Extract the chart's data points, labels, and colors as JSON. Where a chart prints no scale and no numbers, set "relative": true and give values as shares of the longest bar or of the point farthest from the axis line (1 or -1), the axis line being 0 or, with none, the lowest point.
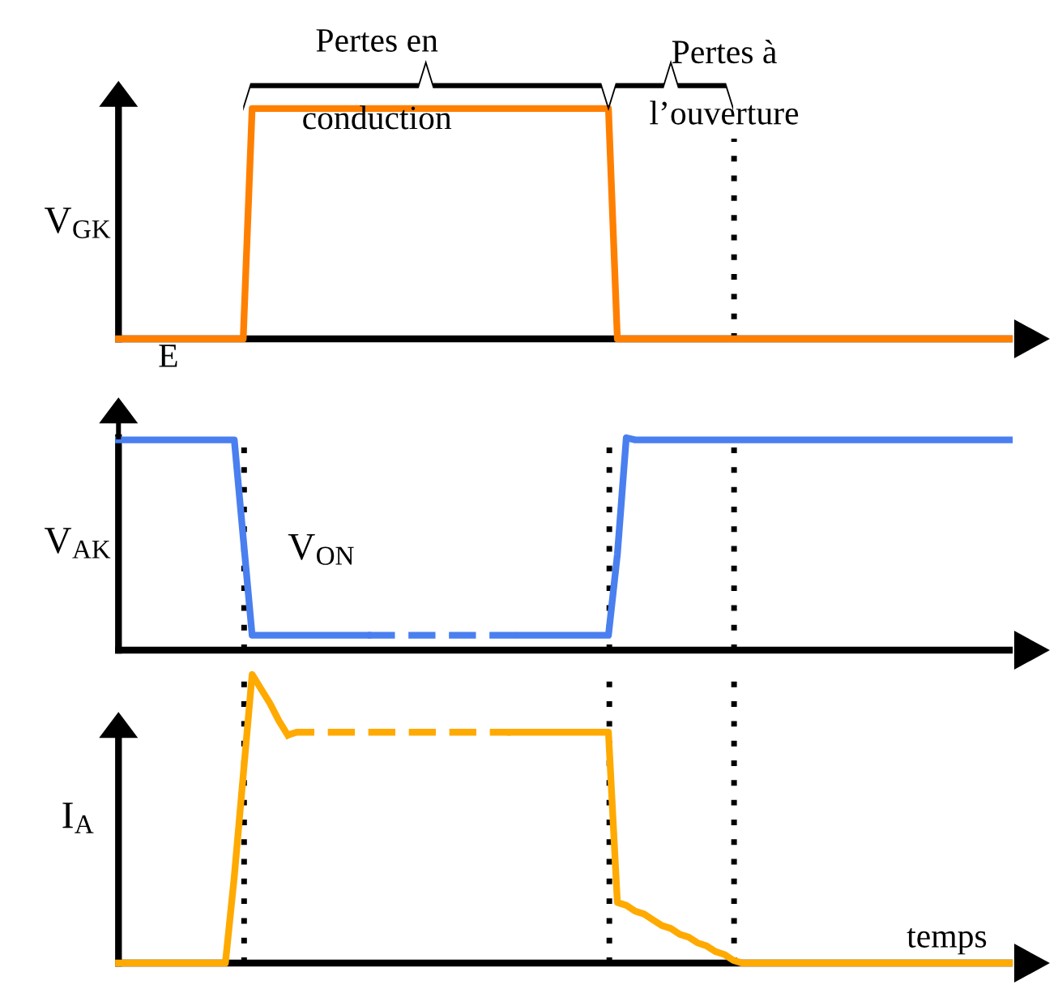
{
  "chart_data": [
    {
      "type": "line",
      "relative": true,
      "ylabel": "V$_{GK}$",
      "categories": [
        null,
        null,
        null,
        null,
        null,
        null,
        null,
        null,
        null,
        null,
        null,
        null,
        null,
        null,
        null,
        null,
        null,
        null,
        null,
        null,
        null,
        null,
        null,
        null,
        null,
        null,
        null,
        null,
        null,
        null,
        null,
        null,
        null,
        null,
        null,
        null,
        null,
        null,
        null,
        null,
        null,
        null,
        null,
        null,
        null,
        null,
        null,
        null,
        null,
        null,
        null,
        null,
        null,
        null,
        null,
        null,
        null,
        null,
        null,
        null,
        null,
        null,
        null,
        null,
        null,
        null,
        null,
        null,
        null,
        null,
        null,
        null,
        null,
        null,
        null,
        null,
        null,
        null,
        null,
        null,
        null,
        null,
        null,
        null,
        null,
        null,
        null,
        null,
        null,
        null,
        null,
        null,
        null,
        null,
        null,
        null,
        null,
        null,
        null,
        null,
        null
      ],
      "series": [
        {
          "color": "#ff8000",
          "line_style": "solid",
          "values": [
            0,
            0,
            0,
            0,
            0,
            0,
            0,
            0,
            0,
            0,
            0,
            0,
            0,
            0,
            0,
            1,
            1,
            1,
            1,
            1,
            1,
            1,
            1,
            1,
            1,
            1,
            1,
            1,
            1,
            1,
            1,
            1,
            1,
            1,
            1,
            1,
            1,
            1,
            1,
            1,
            1,
            1,
            1,
            1,
            1,
            1,
            1,
            1,
            1,
            1,
            1,
            1,
            1,
            1,
            1,
            1,
            0,
            0,
            0,
            0,
            0,
            0,
            0,
            0,
            0,
            0,
            0,
            0,
            0,
            0,
            0,
            0,
            0,
            0,
            0,
            0,
            0,
            0,
            0,
            0,
            0,
            0,
            0,
            0,
            0,
            0,
            0,
            0,
            0,
            0,
            0,
            0,
            0,
            0,
            0,
            0,
            0,
            0,
            0,
            0,
            0
          ]
        }
      ],
      "annotations": [
        "Pertes en\nconduction",
        "Pertes à\nl’ouverture",
        "E"
      ]
    },
    {
      "type": "line",
      "relative": true,
      "ylabel": "V$_{AK}$",
      "categories": [
        null,
        null,
        null,
        null,
        null,
        null,
        null,
        null,
        null,
        null,
        null,
        null,
        null,
        null,
        null,
        null,
        null,
        null,
        null,
        null,
        null,
        null,
        null,
        null,
        null,
        null,
        null,
        null,
        null,
        null,
        null,
        null,
        null,
        null,
        null,
        null,
        null,
        null,
        null,
        null,
        null,
        null,
        null,
        null,
        null,
        null,
        null,
        null,
        null,
        null,
        null,
        null,
        null,
        null,
        null,
        null,
        null,
        null,
        null,
        null,
        null,
        null,
        null,
        null,
        null,
        null,
        null,
        null,
        null,
        null,
        null,
        null,
        null,
        null,
        null,
        null,
        null,
        null,
        null,
        null,
        null,
        null,
        null,
        null,
        null,
        null,
        null,
        null,
        null,
        null,
        null,
        null,
        null,
        null,
        null,
        null,
        null,
        null,
        null,
        null,
        null
      ],
      "series": [
        {
          "color": "#4a7ff0",
          "line_style": "solid",
          "values": [
            0.99,
            0.99,
            0.99,
            0.99,
            0.99,
            0.99,
            0.99,
            0.99,
            0.99,
            0.99,
            0.99,
            0.99,
            0.99,
            0.99,
            0.53,
            0.07,
            0.07,
            0.07,
            0.07,
            0.07,
            0.07,
            0.07,
            0.07,
            0.07,
            0.07,
            0.07,
            0.07,
            0.07,
            0.07,
            null,
            null,
            null,
            null,
            null,
            null,
            null,
            null,
            null,
            null,
            null,
            null,
            null,
            null,
            null,
            null,
            null,
            null,
            null,
            null,
            null,
            null,
            null,
            null,
            null,
            null,
            null,
            null,
            null,
            null,
            null,
            null,
            null,
            null,
            null,
            null,
            null,
            null,
            null,
            null,
            null,
            null,
            null,
            null,
            null,
            null,
            null,
            null,
            null,
            null,
            null,
            null,
            null,
            null,
            null,
            null,
            null,
            null,
            null,
            null,
            null,
            null,
            null,
            null,
            null,
            null,
            null,
            null,
            null,
            null,
            null,
            null
          ]
        },
        {
          "color": "#4a7ff0",
          "line_style": "dashed",
          "values": [
            null,
            null,
            null,
            null,
            null,
            null,
            null,
            null,
            null,
            null,
            null,
            null,
            null,
            null,
            null,
            null,
            null,
            null,
            null,
            null,
            null,
            null,
            null,
            null,
            null,
            null,
            null,
            null,
            0.07,
            0.07,
            0.07,
            0.07,
            0.07,
            0.07,
            0.07,
            0.07,
            0.07,
            0.07,
            0.07,
            0.07,
            0.07,
            0.07,
            0.07,
            0.07,
            0.07,
            0.07,
            null,
            null,
            null,
            null,
            null,
            null,
            null,
            null,
            null,
            null,
            null,
            null,
            null,
            null,
            null,
            null,
            null,
            null,
            null,
            null,
            null,
            null,
            null,
            null,
            null,
            null,
            null,
            null,
            null,
            null,
            null,
            null,
            null,
            null,
            null,
            null,
            null,
            null,
            null,
            null,
            null,
            null,
            null,
            null,
            null,
            null,
            null,
            null,
            null,
            null,
            null,
            null,
            null,
            null,
            null
          ]
        },
        {
          "color": "#4a7ff0",
          "line_style": "solid",
          "values": [
            null,
            null,
            null,
            null,
            null,
            null,
            null,
            null,
            null,
            null,
            null,
            null,
            null,
            null,
            null,
            null,
            null,
            null,
            null,
            null,
            null,
            null,
            null,
            null,
            null,
            null,
            null,
            null,
            null,
            null,
            null,
            null,
            null,
            null,
            null,
            null,
            null,
            null,
            null,
            null,
            null,
            null,
            null,
            null,
            null,
            0.07,
            0.07,
            0.07,
            0.07,
            0.07,
            0.07,
            0.07,
            0.07,
            0.07,
            0.07,
            0.07,
            0.45,
            1,
            0.99,
            0.99,
            0.99,
            0.99,
            0.99,
            0.99,
            0.99,
            0.99,
            0.99,
            0.99,
            0.99,
            0.99,
            0.99,
            0.99,
            0.99,
            0.99,
            0.99,
            0.99,
            0.99,
            0.99,
            0.99,
            0.99,
            0.99,
            0.99,
            0.99,
            0.99,
            0.99,
            0.99,
            0.99,
            0.99,
            0.99,
            0.99,
            0.99,
            0.99,
            0.99,
            0.99,
            0.99,
            0.99,
            0.99,
            0.99,
            0.99,
            0.99,
            0.99
          ]
        }
      ],
      "annotations": [
        "V$_{ON}$"
      ]
    },
    {
      "type": "line",
      "relative": true,
      "ylabel": "I$_{A}$",
      "xlabel": "temps",
      "categories": [
        null,
        null,
        null,
        null,
        null,
        null,
        null,
        null,
        null,
        null,
        null,
        null,
        null,
        null,
        null,
        null,
        null,
        null,
        null,
        null,
        null,
        null,
        null,
        null,
        null,
        null,
        null,
        null,
        null,
        null,
        null,
        null,
        null,
        null,
        null,
        null,
        null,
        null,
        null,
        null,
        null,
        null,
        null,
        null,
        null,
        null,
        null,
        null,
        null,
        null,
        null,
        null,
        null,
        null,
        null,
        null,
        null,
        null,
        null,
        null,
        null,
        null,
        null,
        null,
        null,
        null,
        null,
        null,
        null,
        null,
        null,
        null,
        null,
        null,
        null,
        null,
        null,
        null,
        null,
        null,
        null,
        null,
        null,
        null,
        null,
        null,
        null,
        null,
        null,
        null,
        null,
        null,
        null,
        null,
        null,
        null,
        null,
        null,
        null,
        null,
        null
      ],
      "series": [
        {
          "color": "#ffaa00",
          "line_style": "solid",
          "values": [
            0,
            0,
            0,
            0,
            0,
            0,
            0,
            0,
            0,
            0,
            0,
            0,
            0,
            0.3,
            0.65,
            1,
            0.95,
            0.9,
            0.84,
            0.79,
            null,
            null,
            null,
            null,
            null,
            null,
            null,
            null,
            null,
            null,
            null,
            null,
            null,
            null,
            null,
            null,
            null,
            null,
            null,
            null,
            null,
            null,
            null,
            null,
            null,
            null,
            null,
            null,
            null,
            null,
            null,
            null,
            null,
            null,
            null,
            null,
            null,
            null,
            null,
            null,
            null,
            null,
            null,
            null,
            null,
            null,
            null,
            null,
            null,
            null,
            null,
            null,
            null,
            null,
            null,
            null,
            null,
            null,
            null,
            null,
            null,
            null,
            null,
            null,
            null,
            null,
            null,
            null,
            null,
            null,
            null,
            null,
            null,
            null,
            null,
            null,
            null,
            null,
            null,
            null,
            null
          ]
        },
        {
          "color": "#ffaa00",
          "line_style": "dashed",
          "values": [
            null,
            null,
            null,
            null,
            null,
            null,
            null,
            null,
            null,
            null,
            null,
            null,
            null,
            null,
            null,
            null,
            null,
            null,
            null,
            0.79,
            0.8,
            0.8,
            0.8,
            0.8,
            0.8,
            0.8,
            0.8,
            0.8,
            0.8,
            0.8,
            0.8,
            0.8,
            0.8,
            0.8,
            0.8,
            0.8,
            0.8,
            0.8,
            0.8,
            0.8,
            0.8,
            0.8,
            0.8,
            0.8,
            0.8,
            null,
            null,
            null,
            null,
            null,
            null,
            null,
            null,
            null,
            null,
            null,
            null,
            null,
            null,
            null,
            null,
            null,
            null,
            null,
            null,
            null,
            null,
            null,
            null,
            null,
            null,
            null,
            null,
            null,
            null,
            null,
            null,
            null,
            null,
            null,
            null,
            null,
            null,
            null,
            null,
            null,
            null,
            null,
            null,
            null,
            null,
            null,
            null,
            null,
            null,
            null,
            null,
            null,
            null,
            null,
            null
          ]
        },
        {
          "color": "#ffaa00",
          "line_style": "solid",
          "values": [
            null,
            null,
            null,
            null,
            null,
            null,
            null,
            null,
            null,
            null,
            null,
            null,
            null,
            null,
            null,
            null,
            null,
            null,
            null,
            null,
            null,
            null,
            null,
            null,
            null,
            null,
            null,
            null,
            null,
            null,
            null,
            null,
            null,
            null,
            null,
            null,
            null,
            null,
            null,
            null,
            null,
            null,
            null,
            null,
            0.8,
            0.8,
            0.8,
            0.8,
            0.8,
            0.8,
            0.8,
            0.8,
            0.8,
            0.8,
            0.8,
            0.8,
            0.21,
            0.2,
            0.18,
            0.17,
            0.15,
            0.13,
            0.12,
            0.1,
            0.09,
            0.07,
            0.06,
            0.04,
            0.03,
            0.01,
            0,
            0,
            0,
            0,
            0,
            0,
            0,
            0,
            0,
            0,
            0,
            0,
            0,
            0,
            0,
            0,
            0,
            0,
            0,
            0,
            0,
            0,
            0,
            0,
            0,
            0,
            0,
            0,
            0,
            0,
            0
          ]
        }
      ]
    }
  ]
}
